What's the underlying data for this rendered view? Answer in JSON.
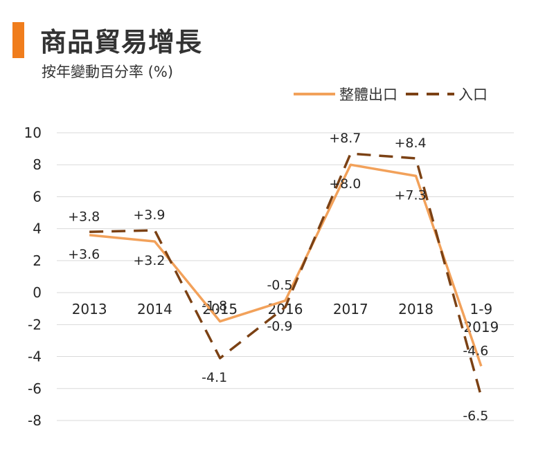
{
  "title": "商品貿易增長",
  "subtitle": "按年變動百分率 (%)",
  "colors": {
    "accent": "#f07d1c",
    "exports": "#f2a15a",
    "imports": "#7b4114",
    "grid": "#d9d9d9",
    "text": "#262626"
  },
  "legend": {
    "exports_label": "整體出口",
    "imports_label": "入口"
  },
  "chart_data": {
    "type": "line",
    "categories": [
      "2013",
      "2014",
      "2015",
      "2016",
      "2017",
      "2018",
      "1-9\n2019"
    ],
    "series": [
      {
        "name": "整體出口",
        "style": "solid",
        "values": [
          3.6,
          3.2,
          -1.8,
          -0.5,
          8.0,
          7.3,
          -4.6
        ],
        "labels": [
          "+3.6",
          "+3.2",
          "-1.8",
          "-0.5",
          "+8.0",
          "+7.3",
          "-4.6"
        ]
      },
      {
        "name": "入口",
        "style": "dashed",
        "values": [
          3.8,
          3.9,
          -4.1,
          -0.9,
          8.7,
          8.4,
          -6.5
        ],
        "labels": [
          "+3.8",
          "+3.9",
          "-4.1",
          "-0.9",
          "+8.7",
          "+8.4",
          "-6.5"
        ]
      }
    ],
    "yticks": [
      10,
      8,
      6,
      4,
      2,
      0,
      -2,
      -4,
      -6,
      -8
    ],
    "ylim": [
      -8,
      10
    ],
    "grid": true,
    "legend_position": "top-right"
  }
}
